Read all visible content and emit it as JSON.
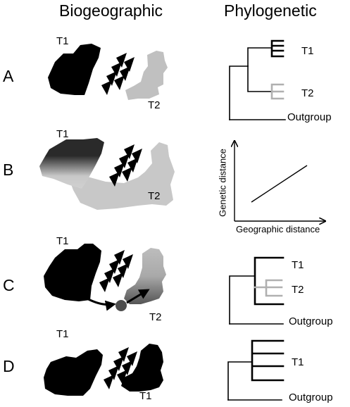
{
  "headers": {
    "biogeographic": "Biogeographic",
    "phylogenetic": "Phylogenetic"
  },
  "rows": {
    "A": {
      "label": "A",
      "map_labels": [
        "T1",
        "T2"
      ],
      "tree_labels": [
        "T1",
        "T2",
        "Outgroup"
      ]
    },
    "B": {
      "label": "B",
      "map_labels": [
        "T1",
        "T2"
      ],
      "plot": {
        "ylabel": "Genetic distance",
        "xlabel": "Geographic distance"
      }
    },
    "C": {
      "label": "C",
      "map_labels": [
        "T1",
        "T2"
      ],
      "tree_labels": [
        "T1",
        "T2",
        "Outgroup"
      ]
    },
    "D": {
      "label": "D",
      "map_labels": [
        "T1",
        "T1"
      ],
      "tree_labels": [
        "T1",
        "Outgroup"
      ]
    }
  },
  "colors": {
    "black": "#000000",
    "light_gray": "#c0c0c0",
    "mid_gray": "#a6a6a6",
    "dark_gray": "#555555",
    "dispersal_node": "#4d4d4d"
  },
  "icons": [
    "mountain-triangle-icon"
  ]
}
